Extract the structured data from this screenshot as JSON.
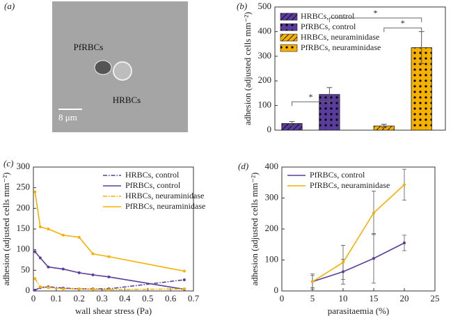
{
  "chart_data": [
    {
      "type": "image",
      "panel": "(a)",
      "annotations": [
        "PfRBCs",
        "HRBCs",
        "8 μm"
      ]
    },
    {
      "type": "bar",
      "panel": "(b)",
      "ylabel": "adhesion (adjusted cells mm⁻²)",
      "categories": [
        "HRBCs, control",
        "PfRBCs, control",
        "HRBCs, neuraminidase",
        "PfRBCs, neuraminidase"
      ],
      "values": [
        27,
        145,
        17,
        335
      ],
      "errors": [
        8,
        28,
        7,
        65
      ],
      "colors": [
        "#5b3b9c",
        "#5b3b9c",
        "#f5b000",
        "#f5b000"
      ],
      "patterns": [
        "hatch",
        "dots",
        "hatch",
        "dots"
      ],
      "annotations": [
        "*",
        "*",
        "*"
      ],
      "ylim": [
        0,
        500
      ],
      "yticks": [
        0,
        100,
        200,
        300,
        400,
        500
      ],
      "legend": "upper left"
    },
    {
      "type": "line",
      "panel": "(c)",
      "xlabel": "wall shear stress (Pa)",
      "ylabel": "adhesion (adjusted cells mm⁻²)",
      "x": [
        0.007,
        0.03,
        0.065,
        0.13,
        0.2,
        0.26,
        0.33,
        0.66
      ],
      "series": [
        {
          "name": "HRBCs, control",
          "color": "#5b3b9c",
          "dashed": true,
          "values": [
            2,
            8,
            10,
            7,
            5,
            5,
            5,
            27
          ]
        },
        {
          "name": "PfRBCs, control",
          "color": "#5b3b9c",
          "dashed": false,
          "values": [
            95,
            80,
            58,
            53,
            44,
            39,
            34,
            4
          ]
        },
        {
          "name": "HRBCs, neuraminidase",
          "color": "#f5b000",
          "dashed": true,
          "values": [
            30,
            10,
            8,
            5,
            5,
            4,
            3,
            5
          ]
        },
        {
          "name": "PfRBCs, neuraminidase",
          "color": "#f5b000",
          "dashed": false,
          "values": [
            240,
            155,
            150,
            135,
            130,
            90,
            83,
            48
          ]
        }
      ],
      "xlim": [
        0,
        0.7
      ],
      "xticks": [
        0,
        0.1,
        0.2,
        0.3,
        0.4,
        0.5,
        0.6,
        0.7
      ],
      "ylim": [
        0,
        300
      ],
      "yticks": [
        0,
        50,
        100,
        150,
        200,
        250,
        300
      ],
      "legend": "upper right"
    },
    {
      "type": "line",
      "panel": "(d)",
      "xlabel": "parasitaemia (%)",
      "ylabel": "adhesion (adjusted cells mm⁻²)",
      "x": [
        5,
        10,
        15,
        20
      ],
      "series": [
        {
          "name": "PfRBCs, control",
          "color": "#5b3b9c",
          "dashed": false,
          "values": [
            30,
            62,
            105,
            155
          ],
          "errors": [
            25,
            40,
            80,
            25
          ]
        },
        {
          "name": "PfRBCs, neuraminidase",
          "color": "#f5b000",
          "dashed": false,
          "values": [
            30,
            92,
            252,
            343
          ],
          "errors": [
            20,
            55,
            70,
            50
          ]
        }
      ],
      "xlim": [
        0,
        25
      ],
      "xticks": [
        0,
        5,
        10,
        15,
        20,
        25
      ],
      "ylim": [
        0,
        400
      ],
      "yticks": [
        0,
        100,
        200,
        300,
        400
      ],
      "legend": "upper left"
    }
  ]
}
